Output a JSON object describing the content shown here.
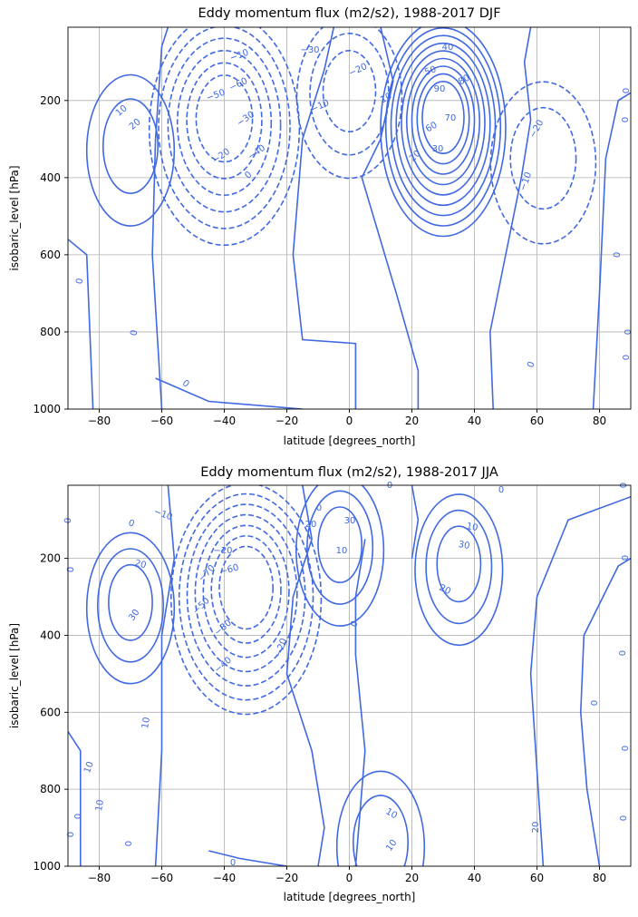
{
  "chart_data": [
    {
      "type": "contour",
      "title": "Eddy momentum flux (m2/s2), 1988-2017 DJF",
      "xlabel": "latitude [degrees_north]",
      "ylabel": "isobaric_level [hPa]",
      "xlim": [
        -90,
        90
      ],
      "ylim": [
        1000,
        10
      ],
      "y_inverted": true,
      "grid": true,
      "xticks": [
        -80,
        -60,
        -40,
        -20,
        0,
        20,
        40,
        60,
        80
      ],
      "yticks": [
        200,
        400,
        600,
        800,
        1000
      ],
      "line_color": "#4169e1",
      "negative_style": "dashed",
      "centers": [
        {
          "lat": -70,
          "lev": 300,
          "peak": 20,
          "levels": [
            10,
            20
          ]
        },
        {
          "lat": -40,
          "lev": 230,
          "peak": -60,
          "levels": [
            -10,
            -20,
            -30,
            -40,
            -50,
            -60
          ]
        },
        {
          "lat": 0,
          "lev": 160,
          "peak": -30,
          "levels": [
            -10,
            -20,
            -30
          ]
        },
        {
          "lat": 30,
          "lev": 230,
          "peak": 90,
          "levels": [
            10,
            20,
            30,
            40,
            50,
            60,
            70,
            80,
            90
          ]
        },
        {
          "lat": 62,
          "lev": 330,
          "peak": -20,
          "levels": [
            -10,
            -20
          ]
        }
      ],
      "contour_labels": [
        "-10",
        "-50",
        "-60",
        "-30",
        "-40",
        "-20",
        "0",
        "-30",
        "-20",
        "-10",
        "10",
        "40",
        "50",
        "80",
        "90",
        "70",
        "60",
        "30",
        "20",
        "-20",
        "-10",
        "10",
        "20",
        "0",
        "0",
        "0",
        "0",
        "0",
        "0",
        "0",
        "0",
        "0"
      ]
    },
    {
      "type": "contour",
      "title": "Eddy momentum flux (m2/s2), 1988-2017 JJA",
      "xlabel": "latitude [degrees_north]",
      "ylabel": "isobaric_level [hPa]",
      "xlim": [
        -90,
        90
      ],
      "ylim": [
        1000,
        10
      ],
      "y_inverted": true,
      "grid": true,
      "xticks": [
        -80,
        -60,
        -40,
        -20,
        0,
        20,
        40,
        60,
        80
      ],
      "yticks": [
        200,
        400,
        600,
        800,
        1000
      ],
      "line_color": "#4169e1",
      "negative_style": "dashed",
      "centers": [
        {
          "lat": -70,
          "lev": 300,
          "peak": 30,
          "levels": [
            10,
            20,
            30
          ]
        },
        {
          "lat": -33,
          "lev": 260,
          "peak": -70,
          "levels": [
            -10,
            -20,
            -30,
            -40,
            -50,
            -60,
            -70
          ]
        },
        {
          "lat": -3,
          "lev": 150,
          "peak": 30,
          "levels": [
            10,
            20,
            30
          ]
        },
        {
          "lat": 35,
          "lev": 200,
          "peak": 30,
          "levels": [
            10,
            20,
            30
          ]
        },
        {
          "lat": 10,
          "lev": 920,
          "peak": 20,
          "levels": [
            10,
            20
          ]
        }
      ],
      "contour_labels": [
        "0",
        "-10",
        "-20",
        "-60",
        "-70",
        "-50",
        "-30",
        "-40",
        "-20",
        "20",
        "30",
        "20",
        "10",
        "30",
        "10",
        "30",
        "20",
        "10",
        "10",
        "10",
        "10",
        "10",
        "20",
        "0",
        "0",
        "0",
        "0",
        "0",
        "0",
        "0",
        "0",
        "0",
        "0",
        "0",
        "0",
        "0",
        "0",
        "0",
        "0"
      ]
    }
  ]
}
